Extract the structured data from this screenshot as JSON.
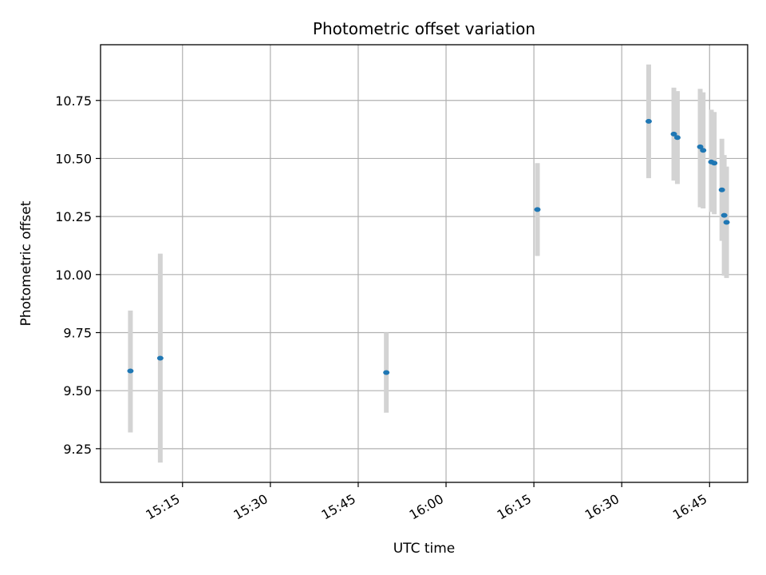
{
  "chart_data": {
    "type": "scatter",
    "title": "Photometric offset variation",
    "xlabel": "UTC time",
    "ylabel": "Photometric offset",
    "grid": true,
    "x_unit": "minutes since 15:00 UTC",
    "xlim": [
      1,
      111.5
    ],
    "ylim": [
      9.105,
      10.99
    ],
    "x_ticks": [
      {
        "value": 15,
        "label": "15:15"
      },
      {
        "value": 30,
        "label": "15:30"
      },
      {
        "value": 45,
        "label": "15:45"
      },
      {
        "value": 60,
        "label": "16:00"
      },
      {
        "value": 75,
        "label": "16:15"
      },
      {
        "value": 90,
        "label": "16:30"
      },
      {
        "value": 105,
        "label": "16:45"
      }
    ],
    "y_ticks": [
      {
        "value": 9.25,
        "label": "9.25"
      },
      {
        "value": 9.5,
        "label": "9.50"
      },
      {
        "value": 9.75,
        "label": "9.75"
      },
      {
        "value": 10.0,
        "label": "10.00"
      },
      {
        "value": 10.25,
        "label": "10.25"
      },
      {
        "value": 10.5,
        "label": "10.50"
      },
      {
        "value": 10.75,
        "label": "10.75"
      }
    ],
    "colors": {
      "point": "#1f77b4",
      "errorbar": "#d3d3d3",
      "grid": "#b0b0b0"
    },
    "points": [
      {
        "x": 6.1,
        "y": 9.585,
        "err_low": 9.32,
        "err_high": 9.845
      },
      {
        "x": 11.2,
        "y": 9.64,
        "err_low": 9.19,
        "err_high": 10.09
      },
      {
        "x": 49.8,
        "y": 9.578,
        "err_low": 9.405,
        "err_high": 9.75
      },
      {
        "x": 75.6,
        "y": 10.28,
        "err_low": 10.08,
        "err_high": 10.48
      },
      {
        "x": 94.6,
        "y": 10.66,
        "err_low": 10.415,
        "err_high": 10.905
      },
      {
        "x": 98.9,
        "y": 10.605,
        "err_low": 10.405,
        "err_high": 10.805
      },
      {
        "x": 99.5,
        "y": 10.59,
        "err_low": 10.39,
        "err_high": 10.79
      },
      {
        "x": 103.4,
        "y": 10.55,
        "err_low": 10.29,
        "err_high": 10.8
      },
      {
        "x": 103.9,
        "y": 10.535,
        "err_low": 10.285,
        "err_high": 10.785
      },
      {
        "x": 105.3,
        "y": 10.485,
        "err_low": 10.27,
        "err_high": 10.71
      },
      {
        "x": 105.8,
        "y": 10.48,
        "err_low": 10.26,
        "err_high": 10.7
      },
      {
        "x": 107.1,
        "y": 10.365,
        "err_low": 10.145,
        "err_high": 10.585
      },
      {
        "x": 107.5,
        "y": 10.255,
        "err_low": 9.995,
        "err_high": 10.515
      },
      {
        "x": 107.9,
        "y": 10.225,
        "err_low": 9.985,
        "err_high": 10.465
      }
    ]
  }
}
